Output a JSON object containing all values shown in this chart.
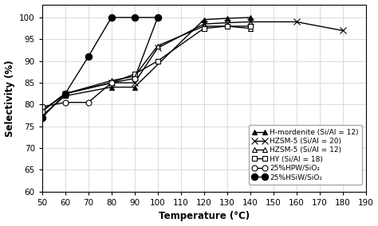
{
  "title": "",
  "xlabel": "Temperature (°C)",
  "ylabel": "Selectivity (%)",
  "xlim": [
    50,
    190
  ],
  "ylim": [
    60,
    103
  ],
  "xticks": [
    50,
    60,
    70,
    80,
    90,
    100,
    110,
    120,
    130,
    140,
    150,
    160,
    170,
    180,
    190
  ],
  "yticks": [
    60,
    65,
    70,
    75,
    80,
    85,
    90,
    95,
    100
  ],
  "series": [
    {
      "label": "H-mordenite (Si/Al = 12)",
      "x": [
        50,
        60,
        80,
        90,
        120,
        130,
        140
      ],
      "y": [
        77.5,
        82,
        84,
        84,
        99.5,
        99.8,
        100
      ],
      "marker": "^",
      "markersize": 5,
      "linestyle": "-",
      "color": "#000000",
      "markerfacecolor": "#000000"
    },
    {
      "label": "HZSM-5 (Si/Al = 20)",
      "x": [
        50,
        60,
        80,
        90,
        100,
        120,
        130,
        140,
        160,
        180
      ],
      "y": [
        78.5,
        82.5,
        85,
        85,
        93,
        98.5,
        98.8,
        99,
        99,
        97
      ],
      "marker": "x",
      "markersize": 6,
      "linestyle": "-",
      "color": "#000000",
      "markerfacecolor": "#000000"
    },
    {
      "label": "HZSM-5 (Si/Al = 12)",
      "x": [
        50,
        60,
        80,
        90,
        100,
        120,
        130,
        140
      ],
      "y": [
        78.5,
        82.5,
        85.5,
        86.5,
        93.5,
        98,
        98,
        97.5
      ],
      "marker": "^",
      "markersize": 5,
      "linestyle": "-",
      "color": "#000000",
      "markerfacecolor": "#ffffff"
    },
    {
      "label": "HY (Si/Al = 18)",
      "x": [
        50,
        60,
        80,
        90,
        100,
        120,
        130,
        140
      ],
      "y": [
        78.5,
        82.5,
        85,
        87,
        90,
        97.5,
        98,
        98
      ],
      "marker": "s",
      "markersize": 5,
      "linestyle": "-",
      "color": "#000000",
      "markerfacecolor": "#ffffff"
    },
    {
      "label": "25%HPW/SiO₂",
      "x": [
        50,
        60,
        70,
        80,
        90,
        100
      ],
      "y": [
        79.5,
        80.5,
        80.5,
        85,
        86,
        100
      ],
      "marker": "o",
      "markersize": 5,
      "linestyle": "-",
      "color": "#000000",
      "markerfacecolor": "#ffffff"
    },
    {
      "label": "25%HSiW/SiO₂",
      "x": [
        50,
        60,
        70,
        80,
        90,
        100
      ],
      "y": [
        77,
        82.5,
        91,
        100,
        100,
        100
      ],
      "marker": "o",
      "markersize": 6,
      "linestyle": "-",
      "color": "#000000",
      "markerfacecolor": "#000000"
    }
  ],
  "grid_color": "#cccccc",
  "background_color": "#ffffff",
  "legend_fontsize": 6.5,
  "axis_fontsize": 8.5,
  "tick_fontsize": 7.5
}
